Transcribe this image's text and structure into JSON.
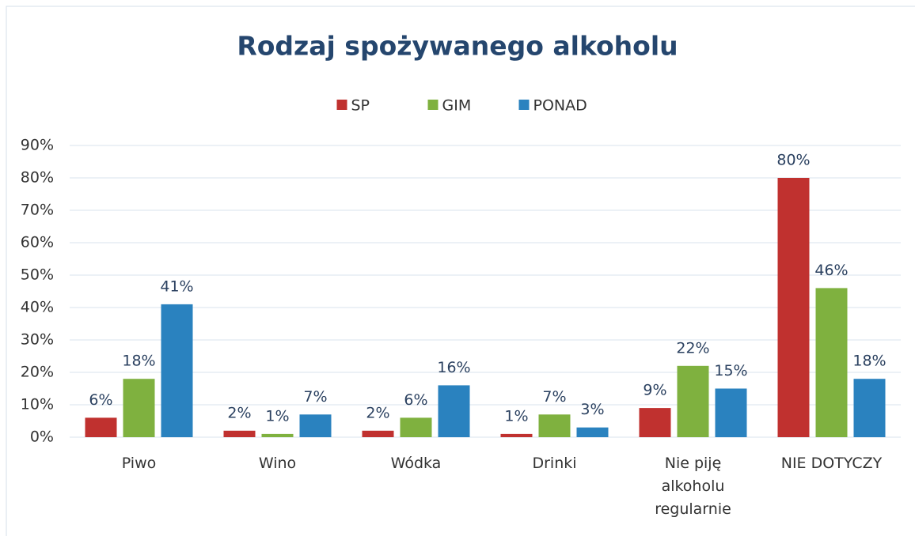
{
  "chart_data": {
    "type": "bar",
    "title": "Rodzaj spożywanego alkoholu",
    "categories": [
      "Piwo",
      "Wino",
      "Wódka",
      "Drinki",
      "Nie piję alkoholu regularnie",
      "NIE DOTYCZY"
    ],
    "series": [
      {
        "name": "SP",
        "color": "#c0312f",
        "values": [
          6,
          2,
          2,
          1,
          9,
          80
        ],
        "value_labels": [
          "6%",
          "2%",
          "2%",
          "1%",
          "9%",
          "80%"
        ]
      },
      {
        "name": "GIM",
        "color": "#7fb13f",
        "values": [
          18,
          1,
          6,
          7,
          22,
          46
        ],
        "value_labels": [
          "18%",
          "1%",
          "6%",
          "7%",
          "22%",
          "46%"
        ]
      },
      {
        "name": "PONAD",
        "color": "#2a82bf",
        "values": [
          41,
          7,
          16,
          3,
          15,
          18
        ],
        "value_labels": [
          "41%",
          "7%",
          "16%",
          "3%",
          "15%",
          "18%"
        ]
      }
    ],
    "ylim": [
      0,
      90
    ],
    "yticks": [
      {
        "value": 0,
        "label": "0%"
      },
      {
        "value": 10,
        "label": "10%"
      },
      {
        "value": 20,
        "label": "20%"
      },
      {
        "value": 30,
        "label": "30%"
      },
      {
        "value": 40,
        "label": "40%"
      },
      {
        "value": 50,
        "label": "50%"
      },
      {
        "value": 60,
        "label": "60%"
      },
      {
        "value": 70,
        "label": "70%"
      },
      {
        "value": 80,
        "label": "80%"
      },
      {
        "value": 90,
        "label": "90%"
      }
    ],
    "grid": true,
    "legend": "top"
  }
}
